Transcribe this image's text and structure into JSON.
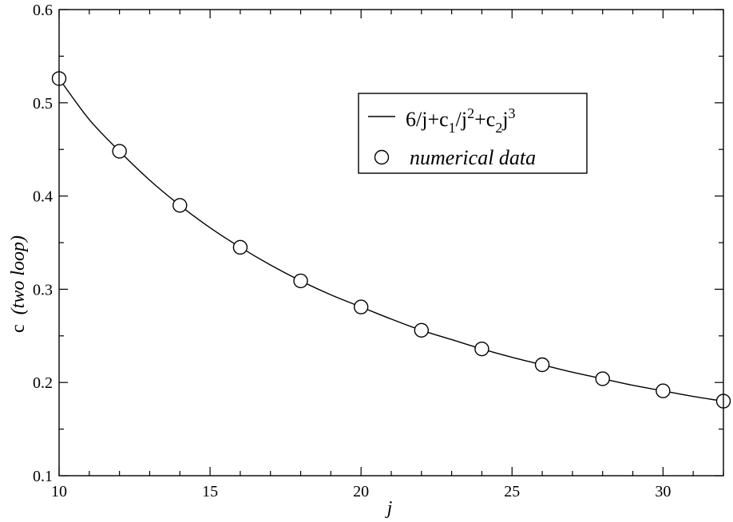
{
  "chart_data": {
    "type": "scatter",
    "xlabel": "j",
    "ylabel": {
      "main": "c",
      "qualifier": "(two loop)"
    },
    "xlim": [
      10,
      32
    ],
    "ylim": [
      0.1,
      0.6
    ],
    "x_ticks": [
      10,
      15,
      20,
      25,
      30
    ],
    "y_ticks": [
      0.1,
      0.2,
      0.3,
      0.4,
      0.5,
      0.6
    ],
    "x_tick_labels": [
      "10",
      "15",
      "20",
      "25",
      "30"
    ],
    "y_tick_labels": [
      "0.1",
      "0.2",
      "0.3",
      "0.4",
      "0.5",
      "0.6"
    ],
    "grid": false,
    "legend_position": "top-right",
    "series": [
      {
        "name": "6/j+c1/j^2+c2j^3",
        "legend_parts": [
          {
            "text": "6/j+c",
            "shift": "none"
          },
          {
            "text": "1",
            "shift": "sub"
          },
          {
            "text": "/j",
            "shift": "none"
          },
          {
            "text": "2",
            "shift": "super"
          },
          {
            "text": "+c",
            "shift": "none"
          },
          {
            "text": "2",
            "shift": "sub"
          },
          {
            "text": "j",
            "shift": "none"
          },
          {
            "text": "3",
            "shift": "super"
          }
        ],
        "kind": "line",
        "color": "#000000",
        "x": [
          10,
          11,
          12,
          13,
          14,
          15,
          16,
          17,
          18,
          19,
          20,
          21,
          22,
          23,
          24,
          25,
          26,
          27,
          28,
          29,
          30,
          31,
          32
        ],
        "y": [
          0.526,
          0.482,
          0.448,
          0.417,
          0.39,
          0.366,
          0.345,
          0.326,
          0.309,
          0.294,
          0.281,
          0.268,
          0.256,
          0.246,
          0.236,
          0.227,
          0.219,
          0.211,
          0.204,
          0.197,
          0.191,
          0.185,
          0.18
        ]
      },
      {
        "name": "numerical data",
        "kind": "scatter",
        "marker": "circle-open",
        "color": "#000000",
        "x": [
          10,
          12,
          14,
          16,
          18,
          20,
          22,
          24,
          26,
          28,
          30,
          32
        ],
        "y": [
          0.526,
          0.448,
          0.39,
          0.345,
          0.309,
          0.281,
          0.256,
          0.236,
          0.219,
          0.204,
          0.191,
          0.18
        ]
      }
    ]
  }
}
